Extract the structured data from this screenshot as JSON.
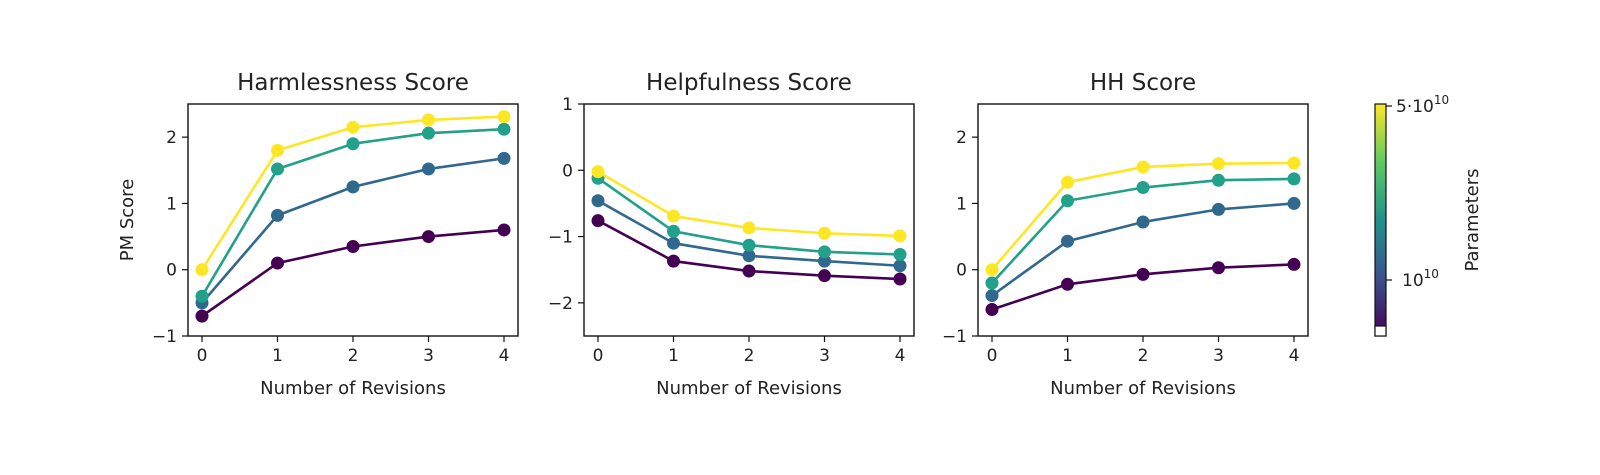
{
  "colorbar": {
    "label": "Parameters",
    "tick_labels": [
      "5·10",
      "10"
    ],
    "tick_exponents": [
      "10",
      "10"
    ],
    "gradient": [
      "#440154",
      "#3b528b",
      "#21918c",
      "#5ec962",
      "#fde725"
    ]
  },
  "series_colors": [
    "#440154",
    "#31688e",
    "#21a08a",
    "#fde725"
  ],
  "chart_data": [
    {
      "type": "line",
      "title": "Harmlessness Score",
      "xlabel": "Number of Revisions",
      "ylabel": "PM Score",
      "x": [
        0,
        1,
        2,
        3,
        4
      ],
      "xticks": [
        "0",
        "1",
        "2",
        "3",
        "4"
      ],
      "yticks": [
        "−1",
        "0",
        "1",
        "2"
      ],
      "ylim": [
        -1,
        2.5
      ],
      "series": [
        {
          "values": [
            -0.7,
            0.1,
            0.35,
            0.5,
            0.6
          ]
        },
        {
          "values": [
            -0.5,
            0.82,
            1.25,
            1.52,
            1.68
          ]
        },
        {
          "values": [
            -0.4,
            1.52,
            1.9,
            2.06,
            2.12
          ]
        },
        {
          "values": [
            0.0,
            1.8,
            2.15,
            2.26,
            2.31
          ]
        }
      ]
    },
    {
      "type": "line",
      "title": "Helpfulness Score",
      "xlabel": "Number of Revisions",
      "ylabel": "",
      "x": [
        0,
        1,
        2,
        3,
        4
      ],
      "xticks": [
        "0",
        "1",
        "2",
        "3",
        "4"
      ],
      "yticks": [
        "−2",
        "−1",
        "0",
        "1"
      ],
      "ylim": [
        -2.5,
        1
      ],
      "series": [
        {
          "values": [
            -0.76,
            -1.37,
            -1.52,
            -1.59,
            -1.64
          ]
        },
        {
          "values": [
            -0.46,
            -1.1,
            -1.29,
            -1.37,
            -1.44
          ]
        },
        {
          "values": [
            -0.12,
            -0.92,
            -1.13,
            -1.23,
            -1.27
          ]
        },
        {
          "values": [
            -0.02,
            -0.69,
            -0.87,
            -0.95,
            -0.99
          ]
        }
      ]
    },
    {
      "type": "line",
      "title": "HH Score",
      "xlabel": "Number of Revisions",
      "ylabel": "",
      "x": [
        0,
        1,
        2,
        3,
        4
      ],
      "xticks": [
        "0",
        "1",
        "2",
        "3",
        "4"
      ],
      "yticks": [
        "−1",
        "0",
        "1",
        "2"
      ],
      "ylim": [
        -1,
        2.5
      ],
      "series": [
        {
          "values": [
            -0.6,
            -0.22,
            -0.07,
            0.03,
            0.08
          ]
        },
        {
          "values": [
            -0.39,
            0.43,
            0.72,
            0.91,
            1.0
          ]
        },
        {
          "values": [
            -0.2,
            1.04,
            1.24,
            1.35,
            1.37
          ]
        },
        {
          "values": [
            0.0,
            1.32,
            1.55,
            1.6,
            1.61
          ]
        }
      ]
    }
  ]
}
